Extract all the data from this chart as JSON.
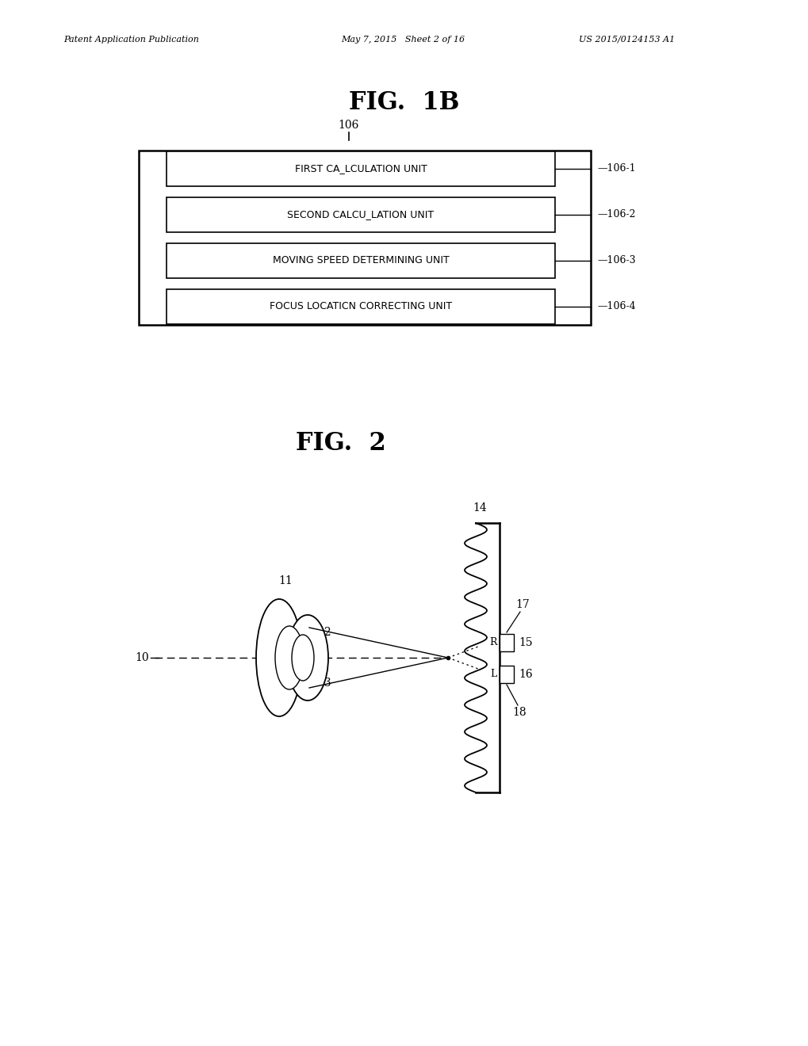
{
  "header_left": "Patent Application Publication",
  "header_mid": "May 7, 2015   Sheet 2 of 16",
  "header_right": "US 2015/0124153 A1",
  "fig1b_title": "FIG.  1B",
  "fig2_title": "FIG.  2",
  "fig1b_label": "106",
  "boxes": [
    "FIRST CA_LCULATION UNIT",
    "SECOND CALCU_LATION UNIT",
    "MOVING SPEED DETERMINING UNIT",
    "FOCUS LOCATICN CORRECTING UNIT"
  ],
  "box_labels": [
    "106-1",
    "106-2",
    "106-3",
    "106-4"
  ],
  "bg_color": "#ffffff",
  "line_color": "#000000",
  "text_color": "#000000"
}
